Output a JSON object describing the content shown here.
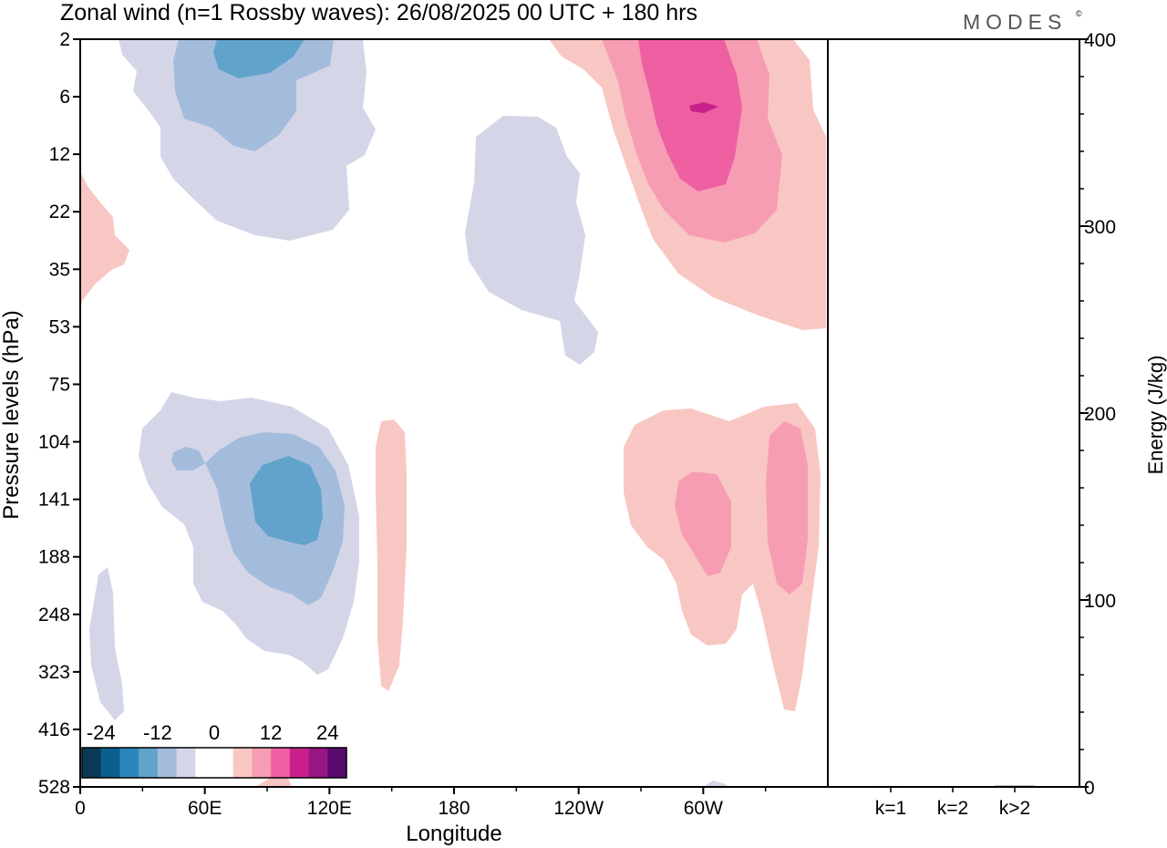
{
  "title": "Zonal wind (n=1 Rossby waves):  26/08/2025  00 UTC  + 180 hrs",
  "logo": "MODES",
  "logo_mark": "©",
  "chart_data": [
    {
      "type": "heatmap",
      "description_of_axes": "longitude vs pressure level",
      "xlabel": "Longitude",
      "ylabel": "Pressure levels (hPa)",
      "x_ticks": [
        "0",
        "60E",
        "120E",
        "180",
        "120W",
        "60W"
      ],
      "x_tick_values": [
        0,
        60,
        120,
        180,
        240,
        300
      ],
      "xlim": [
        0,
        360
      ],
      "y_ticks": [
        "2",
        "6",
        "12",
        "22",
        "35",
        "53",
        "75",
        "104",
        "141",
        "188",
        "248",
        "323",
        "416",
        "528"
      ],
      "y_axis": "pressure levels, top to bottom, equally spaced",
      "colorbar": {
        "labels": [
          "-24",
          "-12",
          "0",
          "12",
          "24"
        ],
        "label_values": [
          -24,
          -12,
          0,
          12,
          24
        ],
        "step": 4,
        "colors": [
          "#0b3a56",
          "#0b5f8e",
          "#2a86bd",
          "#62a3cb",
          "#a4bcdb",
          "#d4d6e8",
          "#ffffff",
          "#ffffff",
          "#f9c7c3",
          "#f79db3",
          "#ee5fa1",
          "#c9208c",
          "#961783",
          "#5b0a6e"
        ]
      },
      "features": [
        {
          "sign": "negative",
          "lon_range": [
            20,
            140
          ],
          "levels": "2-22 hPa",
          "min_approx": -12
        },
        {
          "sign": "negative",
          "lon_range": [
            185,
            250
          ],
          "levels": "6-75 hPa",
          "min_approx": -4
        },
        {
          "sign": "negative",
          "lon_range": [
            25,
            135
          ],
          "levels": "75-323 hPa",
          "min_approx": -12
        },
        {
          "sign": "negative",
          "lon_range": [
            3,
            22
          ],
          "levels": "188-416 hPa",
          "min_approx": -4
        },
        {
          "sign": "positive",
          "lon_range": [
            0,
            25
          ],
          "levels": "12-53 hPa",
          "max_approx": 4
        },
        {
          "sign": "positive",
          "lon_range": [
            225,
            360
          ],
          "levels": "2-53 hPa",
          "max_approx": 16
        },
        {
          "sign": "positive",
          "lon_range": [
            142,
            152
          ],
          "levels": "104-323 hPa",
          "max_approx": 4
        },
        {
          "sign": "positive",
          "lon_range": [
            262,
            350
          ],
          "levels": "104-323 hPa",
          "max_approx": 8
        }
      ]
    },
    {
      "type": "bar",
      "ylabel": "Energy (J/kg)",
      "categories": [
        "k=1",
        "k=2",
        "k>2"
      ],
      "values": [
        0.5,
        0.3,
        0.6
      ],
      "ylim": [
        0,
        400
      ],
      "y_ticks": [
        "0",
        "100",
        "200",
        "300",
        "400"
      ],
      "y_tick_values": [
        0,
        100,
        200,
        300,
        400
      ]
    }
  ]
}
